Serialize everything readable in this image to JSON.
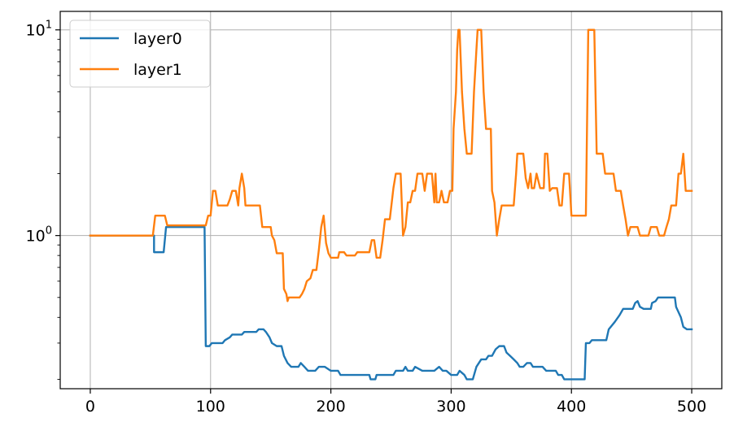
{
  "chart_data": {
    "type": "line",
    "title": "",
    "xlabel": "",
    "ylabel": "",
    "xlim": [
      -25,
      525
    ],
    "ylim": [
      0.18,
      12.3
    ],
    "yscale": "log",
    "grid": true,
    "legend_position": "top-left",
    "x_ticks": [
      0,
      100,
      200,
      300,
      400,
      500
    ],
    "x_tick_labels": [
      "0",
      "100",
      "200",
      "300",
      "400",
      "500"
    ],
    "y_ticks": [
      1,
      10
    ],
    "y_tick_labels_main": [
      "10",
      "10"
    ],
    "y_tick_labels_exp": [
      "0",
      "1"
    ],
    "series": [
      {
        "name": "layer0",
        "color": "#1f77b4",
        "points": [
          [
            0,
            1.0
          ],
          [
            53,
            1.0
          ],
          [
            53,
            0.83
          ],
          [
            61,
            0.83
          ],
          [
            63,
            1.1
          ],
          [
            95,
            1.1
          ],
          [
            96,
            0.29
          ],
          [
            99,
            0.29
          ],
          [
            101,
            0.3
          ],
          [
            110,
            0.3
          ],
          [
            112,
            0.31
          ],
          [
            116,
            0.32
          ],
          [
            118,
            0.33
          ],
          [
            126,
            0.33
          ],
          [
            128,
            0.34
          ],
          [
            138,
            0.34
          ],
          [
            140,
            0.35
          ],
          [
            144,
            0.35
          ],
          [
            146,
            0.34
          ],
          [
            149,
            0.32
          ],
          [
            151,
            0.3
          ],
          [
            155,
            0.29
          ],
          [
            159,
            0.29
          ],
          [
            161,
            0.26
          ],
          [
            164,
            0.24
          ],
          [
            167,
            0.23
          ],
          [
            173,
            0.23
          ],
          [
            175,
            0.24
          ],
          [
            178,
            0.23
          ],
          [
            181,
            0.22
          ],
          [
            187,
            0.22
          ],
          [
            190,
            0.23
          ],
          [
            195,
            0.23
          ],
          [
            200,
            0.22
          ],
          [
            206,
            0.22
          ],
          [
            208,
            0.21
          ],
          [
            220,
            0.21
          ],
          [
            232,
            0.21
          ],
          [
            233,
            0.2
          ],
          [
            237,
            0.2
          ],
          [
            238,
            0.21
          ],
          [
            252,
            0.21
          ],
          [
            254,
            0.22
          ],
          [
            260,
            0.22
          ],
          [
            262,
            0.23
          ],
          [
            264,
            0.22
          ],
          [
            268,
            0.22
          ],
          [
            270,
            0.23
          ],
          [
            276,
            0.22
          ],
          [
            286,
            0.22
          ],
          [
            290,
            0.23
          ],
          [
            293,
            0.22
          ],
          [
            296,
            0.22
          ],
          [
            300,
            0.21
          ],
          [
            305,
            0.21
          ],
          [
            307,
            0.22
          ],
          [
            311,
            0.21
          ],
          [
            313,
            0.2
          ],
          [
            318,
            0.2
          ],
          [
            321,
            0.23
          ],
          [
            325,
            0.25
          ],
          [
            329,
            0.25
          ],
          [
            331,
            0.26
          ],
          [
            334,
            0.26
          ],
          [
            337,
            0.28
          ],
          [
            340,
            0.29
          ],
          [
            344,
            0.29
          ],
          [
            346,
            0.27
          ],
          [
            349,
            0.26
          ],
          [
            352,
            0.25
          ],
          [
            355,
            0.24
          ],
          [
            357,
            0.23
          ],
          [
            360,
            0.23
          ],
          [
            363,
            0.24
          ],
          [
            366,
            0.24
          ],
          [
            368,
            0.23
          ],
          [
            376,
            0.23
          ],
          [
            379,
            0.22
          ],
          [
            387,
            0.22
          ],
          [
            389,
            0.21
          ],
          [
            392,
            0.21
          ],
          [
            394,
            0.2
          ],
          [
            411,
            0.2
          ],
          [
            412,
            0.3
          ],
          [
            415,
            0.3
          ],
          [
            417,
            0.31
          ],
          [
            429,
            0.31
          ],
          [
            431,
            0.35
          ],
          [
            436,
            0.38
          ],
          [
            440,
            0.41
          ],
          [
            443,
            0.44
          ],
          [
            451,
            0.44
          ],
          [
            453,
            0.47
          ],
          [
            455,
            0.48
          ],
          [
            457,
            0.45
          ],
          [
            460,
            0.44
          ],
          [
            466,
            0.44
          ],
          [
            467,
            0.47
          ],
          [
            470,
            0.48
          ],
          [
            472,
            0.5
          ],
          [
            486,
            0.5
          ],
          [
            487,
            0.45
          ],
          [
            491,
            0.4
          ],
          [
            493,
            0.36
          ],
          [
            496,
            0.35
          ],
          [
            500,
            0.35
          ]
        ]
      },
      {
        "name": "layer1",
        "color": "#ff7f0e",
        "points": [
          [
            0,
            1.0
          ],
          [
            52,
            1.0
          ],
          [
            54,
            1.25
          ],
          [
            62,
            1.25
          ],
          [
            64,
            1.12
          ],
          [
            96,
            1.12
          ],
          [
            98,
            1.25
          ],
          [
            100,
            1.25
          ],
          [
            102,
            1.65
          ],
          [
            104,
            1.65
          ],
          [
            106,
            1.4
          ],
          [
            114,
            1.4
          ],
          [
            116,
            1.5
          ],
          [
            118,
            1.65
          ],
          [
            121,
            1.65
          ],
          [
            123,
            1.4
          ],
          [
            124,
            1.7
          ],
          [
            126,
            2.0
          ],
          [
            128,
            1.7
          ],
          [
            129,
            1.4
          ],
          [
            141,
            1.4
          ],
          [
            143,
            1.1
          ],
          [
            150,
            1.1
          ],
          [
            151,
            1.0
          ],
          [
            153,
            0.95
          ],
          [
            155,
            0.82
          ],
          [
            160,
            0.82
          ],
          [
            161,
            0.55
          ],
          [
            163,
            0.52
          ],
          [
            164,
            0.48
          ],
          [
            165,
            0.5
          ],
          [
            174,
            0.5
          ],
          [
            176,
            0.52
          ],
          [
            178,
            0.55
          ],
          [
            180,
            0.6
          ],
          [
            183,
            0.62
          ],
          [
            185,
            0.68
          ],
          [
            188,
            0.68
          ],
          [
            190,
            0.85
          ],
          [
            192,
            1.1
          ],
          [
            194,
            1.25
          ],
          [
            196,
            0.92
          ],
          [
            198,
            0.82
          ],
          [
            200,
            0.78
          ],
          [
            206,
            0.78
          ],
          [
            207,
            0.83
          ],
          [
            211,
            0.83
          ],
          [
            213,
            0.8
          ],
          [
            220,
            0.8
          ],
          [
            222,
            0.83
          ],
          [
            232,
            0.83
          ],
          [
            234,
            0.95
          ],
          [
            236,
            0.95
          ],
          [
            238,
            0.78
          ],
          [
            241,
            0.78
          ],
          [
            243,
            0.95
          ],
          [
            245,
            1.2
          ],
          [
            249,
            1.2
          ],
          [
            252,
            1.7
          ],
          [
            254,
            2.0
          ],
          [
            258,
            2.0
          ],
          [
            260,
            1.0
          ],
          [
            262,
            1.1
          ],
          [
            264,
            1.45
          ],
          [
            266,
            1.45
          ],
          [
            268,
            1.65
          ],
          [
            270,
            1.65
          ],
          [
            272,
            2.0
          ],
          [
            276,
            2.0
          ],
          [
            278,
            1.65
          ],
          [
            280,
            2.0
          ],
          [
            284,
            2.0
          ],
          [
            286,
            1.45
          ],
          [
            287,
            2.0
          ],
          [
            288,
            1.45
          ],
          [
            290,
            1.45
          ],
          [
            292,
            1.65
          ],
          [
            294,
            1.45
          ],
          [
            297,
            1.45
          ],
          [
            299,
            1.65
          ],
          [
            301,
            1.65
          ],
          [
            302,
            3.3
          ],
          [
            304,
            5.0
          ],
          [
            305,
            8.0
          ],
          [
            306,
            10.0
          ],
          [
            307,
            10.0
          ],
          [
            309,
            5.0
          ],
          [
            311,
            3.3
          ],
          [
            313,
            2.5
          ],
          [
            317,
            2.5
          ],
          [
            319,
            5.0
          ],
          [
            321,
            8.0
          ],
          [
            322,
            10.0
          ],
          [
            325,
            10.0
          ],
          [
            327,
            5.0
          ],
          [
            329,
            3.3
          ],
          [
            333,
            3.3
          ],
          [
            334,
            1.65
          ],
          [
            336,
            1.45
          ],
          [
            338,
            1.0
          ],
          [
            340,
            1.2
          ],
          [
            342,
            1.4
          ],
          [
            352,
            1.4
          ],
          [
            354,
            2.0
          ],
          [
            355,
            2.5
          ],
          [
            360,
            2.5
          ],
          [
            362,
            1.9
          ],
          [
            364,
            1.7
          ],
          [
            366,
            2.0
          ],
          [
            367,
            1.7
          ],
          [
            369,
            1.7
          ],
          [
            371,
            2.0
          ],
          [
            374,
            1.7
          ],
          [
            377,
            1.7
          ],
          [
            378,
            2.5
          ],
          [
            380,
            2.5
          ],
          [
            382,
            1.65
          ],
          [
            384,
            1.7
          ],
          [
            386,
            1.7
          ],
          [
            388,
            1.7
          ],
          [
            390,
            1.4
          ],
          [
            392,
            1.4
          ],
          [
            394,
            2.0
          ],
          [
            398,
            2.0
          ],
          [
            400,
            1.25
          ],
          [
            412,
            1.25
          ],
          [
            414,
            10.0
          ],
          [
            419,
            10.0
          ],
          [
            421,
            2.5
          ],
          [
            426,
            2.5
          ],
          [
            428,
            2.0
          ],
          [
            435,
            2.0
          ],
          [
            437,
            1.65
          ],
          [
            441,
            1.65
          ],
          [
            443,
            1.4
          ],
          [
            445,
            1.2
          ],
          [
            447,
            1.0
          ],
          [
            449,
            1.1
          ],
          [
            455,
            1.1
          ],
          [
            457,
            1.0
          ],
          [
            464,
            1.0
          ],
          [
            466,
            1.1
          ],
          [
            471,
            1.1
          ],
          [
            473,
            1.0
          ],
          [
            477,
            1.0
          ],
          [
            479,
            1.1
          ],
          [
            481,
            1.2
          ],
          [
            483,
            1.4
          ],
          [
            487,
            1.4
          ],
          [
            489,
            2.0
          ],
          [
            491,
            2.0
          ],
          [
            493,
            2.5
          ],
          [
            495,
            1.65
          ],
          [
            497,
            1.65
          ],
          [
            500,
            1.65
          ]
        ]
      }
    ]
  }
}
